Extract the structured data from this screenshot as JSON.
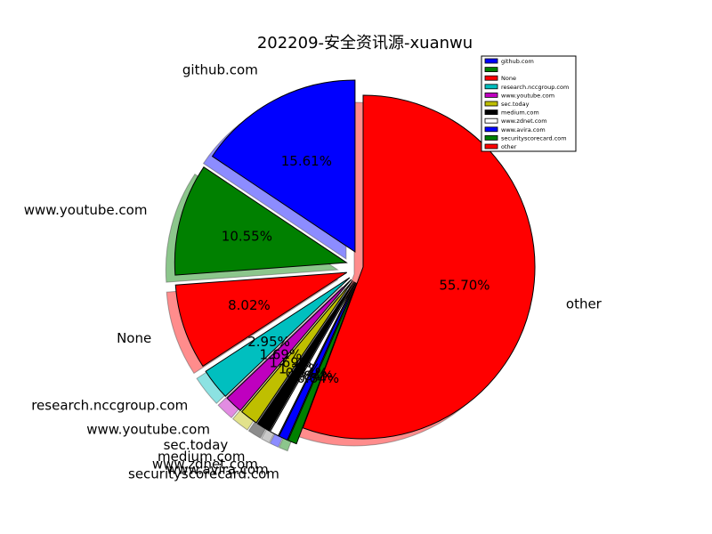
{
  "chart_data": {
    "type": "pie",
    "title": "202209-安全资讯源-xuanwu",
    "legend_position": "top-right",
    "slices": [
      {
        "label": "github.com",
        "value": 15.61,
        "pct_text": "15.61%",
        "color": "#0000ff",
        "exploded": true
      },
      {
        "label": "www.youtube.com",
        "value": 10.55,
        "pct_text": "10.55%",
        "color": "#008000",
        "exploded": true
      },
      {
        "label": "None",
        "value": 8.02,
        "pct_text": "8.02%",
        "color": "#ff0000",
        "exploded": true
      },
      {
        "label": "research.nccgroup.com",
        "value": 2.95,
        "pct_text": "2.95%",
        "color": "#00bfbf",
        "exploded": true
      },
      {
        "label": "www.youtube.com",
        "value": 1.69,
        "pct_text": "1.69%",
        "color": "#bf00bf",
        "exploded": true
      },
      {
        "label": "sec.today",
        "value": 1.69,
        "pct_text": "1.69%",
        "color": "#bfbf00",
        "exploded": true
      },
      {
        "label": "medium.com",
        "value": 1.27,
        "pct_text": "1.27%",
        "color": "#000000",
        "exploded": true
      },
      {
        "label": "www.zdnet.com",
        "value": 0.84,
        "pct_text": "0.84%",
        "color": "#ffffff",
        "exploded": true
      },
      {
        "label": "www.avira.com",
        "value": 0.84,
        "pct_text": "0.84%",
        "color": "#0000ff",
        "exploded": true
      },
      {
        "label": "securityscorecard.com",
        "value": 0.84,
        "pct_text": "0.84%",
        "color": "#008000",
        "exploded": true
      },
      {
        "label": "other",
        "value": 55.7,
        "pct_text": "55.70%",
        "color": "#ff0000",
        "exploded": false
      }
    ]
  },
  "legend": {
    "items": [
      "github.com",
      "",
      "None",
      "research.nccgroup.com",
      "www.youtube.com",
      "sec.today",
      "medium.com",
      "www.zdnet.com",
      "www.avira.com",
      "securityscorecard.com",
      "other"
    ]
  }
}
